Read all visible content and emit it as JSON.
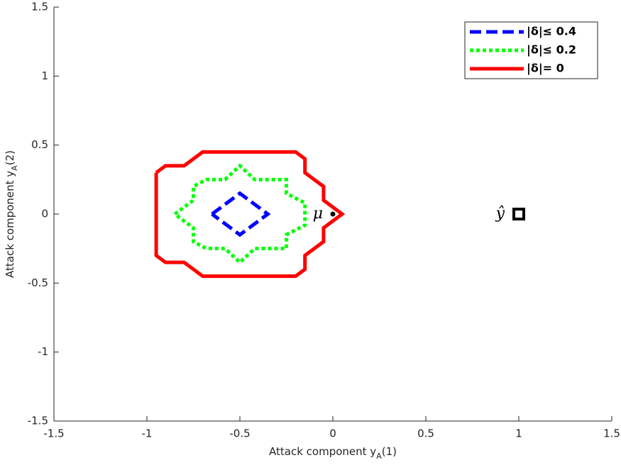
{
  "chart_data": {
    "type": "line",
    "xlabel": [
      "Attack component y",
      "A",
      "(1)"
    ],
    "ylabel": [
      "Attack component y",
      "A",
      "(2)"
    ],
    "xlim": [
      -1.5,
      1.5
    ],
    "ylim": [
      -1.5,
      1.5
    ],
    "xticks": [
      -1.5,
      -1,
      -0.5,
      0,
      0.5,
      1,
      1.5
    ],
    "yticks": [
      -1.5,
      -1,
      -0.5,
      0,
      0.5,
      1,
      1.5
    ],
    "legend": "northeast",
    "series": [
      {
        "name": "|δ|≤ 0.4",
        "color": "#0000ff",
        "style": "dashed",
        "x": [
          -0.65,
          -0.5,
          -0.35,
          -0.5,
          -0.65
        ],
        "values": [
          0,
          0.15,
          0,
          -0.15,
          0
        ]
      },
      {
        "name": "|δ|≤ 0.2",
        "color": "#00ff00",
        "style": "dotted",
        "x": [
          -0.85,
          -0.75,
          -0.75,
          -0.68,
          -0.58,
          -0.5,
          -0.42,
          -0.25,
          -0.25,
          -0.15,
          -0.15,
          -0.15,
          -0.25,
          -0.25,
          -0.42,
          -0.5,
          -0.58,
          -0.68,
          -0.75,
          -0.75,
          -0.85
        ],
        "values": [
          0,
          0.1,
          0.2,
          0.25,
          0.25,
          0.35,
          0.25,
          0.25,
          0.15,
          0.08,
          0,
          -0.08,
          -0.15,
          -0.25,
          -0.25,
          -0.35,
          -0.25,
          -0.25,
          -0.2,
          -0.1,
          0
        ]
      },
      {
        "name": "|δ|= 0",
        "color": "#ff0000",
        "style": "solid",
        "x": [
          -0.95,
          -0.9,
          -0.8,
          -0.7,
          -0.2,
          -0.15,
          -0.15,
          -0.05,
          -0.05,
          0.05,
          -0.05,
          -0.05,
          -0.15,
          -0.15,
          -0.2,
          -0.7,
          -0.8,
          -0.9,
          -0.95,
          -0.95
        ],
        "values": [
          0.3,
          0.35,
          0.35,
          0.45,
          0.45,
          0.4,
          0.3,
          0.2,
          0.1,
          0,
          -0.1,
          -0.2,
          -0.3,
          -0.4,
          -0.45,
          -0.45,
          -0.35,
          -0.35,
          -0.3,
          0.3
        ]
      }
    ],
    "markers": [
      {
        "name": "μ",
        "x": 0,
        "y": 0,
        "shape": "dot"
      },
      {
        "name": "ŷ",
        "x": 1,
        "y": 0,
        "shape": "square"
      }
    ]
  }
}
